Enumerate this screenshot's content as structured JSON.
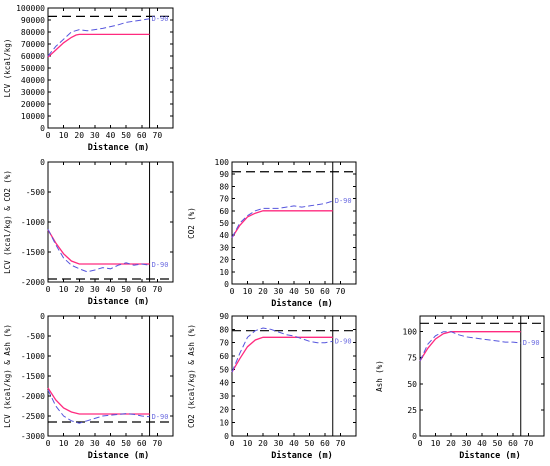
{
  "chart_data": [
    {
      "type": "line",
      "xlabel": "Distance (m)",
      "ylabel": "LCV (kcal/kg)",
      "xlim": [
        0,
        80
      ],
      "ylim": [
        0,
        100000
      ],
      "xticks": [
        0,
        10,
        20,
        30,
        40,
        50,
        60,
        70
      ],
      "yticks": [
        0,
        10000,
        20000,
        30000,
        40000,
        50000,
        60000,
        70000,
        80000,
        90000,
        100000
      ],
      "vline": 65,
      "hline": 93000,
      "annotation": "D-90",
      "colors": {
        "solid": "#ff2a7f",
        "dashed": "#5555dd",
        "ref": "#000000"
      },
      "series": [
        {
          "style": "solid",
          "x": [
            0,
            5,
            10,
            15,
            18,
            20,
            25,
            30,
            40,
            50,
            60,
            65
          ],
          "y": [
            59000,
            65000,
            71000,
            75500,
            77500,
            78000,
            78000,
            78000,
            78000,
            78000,
            78000,
            78000
          ]
        },
        {
          "style": "dashed",
          "x": [
            0,
            5,
            10,
            15,
            20,
            25,
            30,
            35,
            40,
            45,
            50,
            55,
            60,
            65
          ],
          "y": [
            60000,
            68000,
            74000,
            80000,
            82000,
            81000,
            82000,
            83000,
            84500,
            86000,
            88000,
            89000,
            90000,
            91000
          ]
        }
      ]
    },
    {
      "type": "line",
      "xlabel": "Distance (m)",
      "ylabel": "LCV (kcal/kg) & CO2 (%)",
      "xlim": [
        0,
        80
      ],
      "ylim": [
        -2000,
        0
      ],
      "xticks": [
        0,
        10,
        20,
        30,
        40,
        50,
        60,
        70
      ],
      "yticks": [
        -2000,
        -1500,
        -1000,
        -500,
        0
      ],
      "vline": 65,
      "hline": -1950,
      "annotation": "D-90",
      "colors": {
        "solid": "#ff2a7f",
        "dashed": "#5555dd",
        "ref": "#000000"
      },
      "series": [
        {
          "style": "solid",
          "x": [
            0,
            5,
            10,
            15,
            20,
            30,
            40,
            50,
            60,
            65
          ],
          "y": [
            -1130,
            -1350,
            -1530,
            -1650,
            -1700,
            -1700,
            -1700,
            -1700,
            -1700,
            -1700
          ]
        },
        {
          "style": "dashed",
          "x": [
            0,
            5,
            10,
            15,
            20,
            25,
            30,
            35,
            40,
            45,
            50,
            55,
            60,
            65
          ],
          "y": [
            -1120,
            -1380,
            -1600,
            -1720,
            -1780,
            -1830,
            -1800,
            -1760,
            -1780,
            -1720,
            -1680,
            -1720,
            -1700,
            -1720
          ]
        }
      ]
    },
    {
      "type": "line",
      "xlabel": "Distance (m)",
      "ylabel": "CO2 (%)",
      "xlim": [
        0,
        80
      ],
      "ylim": [
        0,
        100
      ],
      "xticks": [
        0,
        10,
        20,
        30,
        40,
        50,
        60,
        70
      ],
      "yticks": [
        0,
        10,
        20,
        30,
        40,
        50,
        60,
        70,
        80,
        90,
        100
      ],
      "vline": 65,
      "hline": 92,
      "annotation": "D-90",
      "colors": {
        "solid": "#ff2a7f",
        "dashed": "#5555dd",
        "ref": "#000000"
      },
      "series": [
        {
          "style": "solid",
          "x": [
            0,
            5,
            10,
            15,
            20,
            30,
            40,
            50,
            60,
            65
          ],
          "y": [
            38,
            48,
            55,
            58,
            60,
            60,
            60,
            60,
            60,
            60
          ]
        },
        {
          "style": "dashed",
          "x": [
            0,
            5,
            10,
            15,
            20,
            25,
            30,
            35,
            40,
            45,
            50,
            55,
            60,
            65
          ],
          "y": [
            38,
            50,
            56,
            60,
            62,
            62,
            62,
            63,
            64,
            63,
            64,
            65,
            66,
            68
          ]
        }
      ]
    },
    {
      "type": "line",
      "xlabel": "Distance (m)",
      "ylabel": "LCV (kcal/kg) & Ash (%)",
      "xlim": [
        0,
        80
      ],
      "ylim": [
        -3000,
        0
      ],
      "xticks": [
        0,
        10,
        20,
        30,
        40,
        50,
        60,
        70
      ],
      "yticks": [
        -3000,
        -2500,
        -2000,
        -1500,
        -1000,
        -500,
        0
      ],
      "vline": 65,
      "hline": -2650,
      "annotation": "D-90",
      "colors": {
        "solid": "#ff2a7f",
        "dashed": "#5555dd",
        "ref": "#000000"
      },
      "series": [
        {
          "style": "solid",
          "x": [
            0,
            5,
            10,
            15,
            20,
            30,
            40,
            50,
            60,
            65
          ],
          "y": [
            -1800,
            -2100,
            -2300,
            -2400,
            -2450,
            -2450,
            -2450,
            -2450,
            -2450,
            -2450
          ]
        },
        {
          "style": "dashed",
          "x": [
            0,
            5,
            10,
            15,
            20,
            25,
            30,
            35,
            40,
            45,
            50,
            55,
            60,
            65
          ],
          "y": [
            -1850,
            -2250,
            -2500,
            -2620,
            -2680,
            -2620,
            -2560,
            -2500,
            -2480,
            -2460,
            -2440,
            -2460,
            -2500,
            -2520
          ]
        }
      ]
    },
    {
      "type": "line",
      "xlabel": "Distance (m)",
      "ylabel": "CO2 (kcal/kg) & Ash (%)",
      "xlim": [
        0,
        80
      ],
      "ylim": [
        0,
        90
      ],
      "xticks": [
        0,
        10,
        20,
        30,
        40,
        50,
        60,
        70
      ],
      "yticks": [
        0,
        10,
        20,
        30,
        40,
        50,
        60,
        70,
        80,
        90
      ],
      "vline": 65,
      "hline": 79,
      "annotation": "D-90",
      "colors": {
        "solid": "#ff2a7f",
        "dashed": "#5555dd",
        "ref": "#000000"
      },
      "series": [
        {
          "style": "solid",
          "x": [
            0,
            5,
            10,
            15,
            20,
            30,
            40,
            50,
            60,
            65
          ],
          "y": [
            48,
            58,
            67,
            72,
            74,
            74,
            74,
            74,
            74,
            74
          ]
        },
        {
          "style": "dashed",
          "x": [
            0,
            5,
            10,
            15,
            20,
            25,
            30,
            35,
            40,
            45,
            50,
            55,
            60,
            65
          ],
          "y": [
            48,
            62,
            74,
            79,
            81,
            80,
            78,
            76,
            75,
            73,
            71,
            70,
            70,
            71
          ]
        }
      ]
    },
    {
      "type": "line",
      "xlabel": "Distance (m)",
      "ylabel": "Ash (%)",
      "xlim": [
        0,
        80
      ],
      "ylim": [
        0,
        115
      ],
      "xticks": [
        0,
        10,
        20,
        30,
        40,
        50,
        60,
        70
      ],
      "yticks": [
        0,
        25,
        50,
        75,
        100
      ],
      "vline": 65,
      "hline": 108,
      "annotation": "D-90",
      "colors": {
        "solid": "#ff2a7f",
        "dashed": "#5555dd",
        "ref": "#000000"
      },
      "series": [
        {
          "style": "solid",
          "x": [
            0,
            5,
            10,
            15,
            20,
            25,
            30,
            40,
            50,
            60,
            65
          ],
          "y": [
            72,
            84,
            93,
            98,
            100,
            100,
            100,
            100,
            100,
            100,
            100
          ]
        },
        {
          "style": "dashed",
          "x": [
            0,
            5,
            10,
            15,
            20,
            25,
            30,
            35,
            40,
            45,
            50,
            55,
            60,
            65
          ],
          "y": [
            72,
            88,
            96,
            100,
            100,
            97,
            95,
            94,
            93,
            92,
            91,
            90,
            90,
            89
          ]
        }
      ]
    }
  ]
}
